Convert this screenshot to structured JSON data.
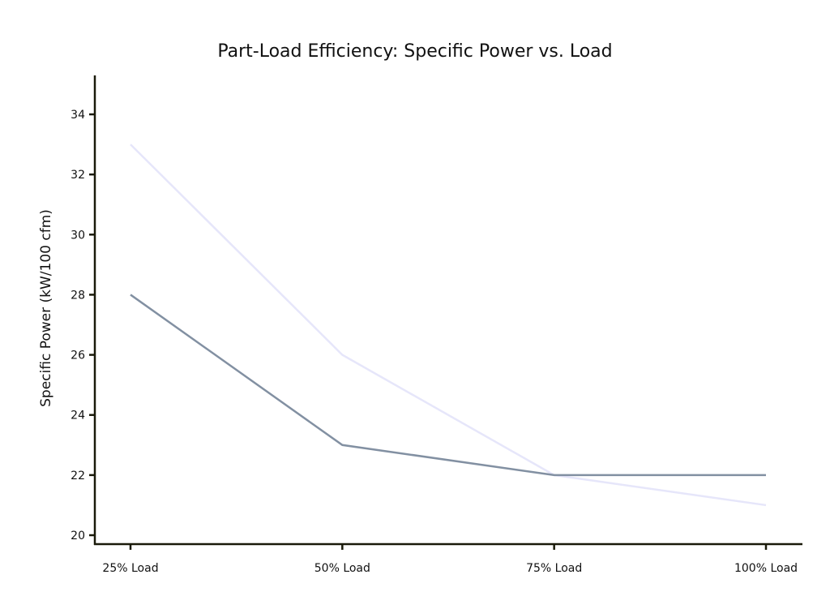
{
  "chart_data": {
    "type": "line",
    "title": "Part-Load Efficiency: Specific Power vs. Load",
    "xlabel": "",
    "ylabel": "Specific Power (kW/100 cfm)",
    "categories": [
      "25% Load",
      "50% Load",
      "75% Load",
      "100% Load"
    ],
    "ylim": [
      19.7,
      35.3
    ],
    "yticks": [
      20,
      22,
      24,
      26,
      28,
      30,
      32,
      34
    ],
    "grid": false,
    "legend": "none",
    "series": [
      {
        "name": "series-1",
        "values": [
          33,
          26,
          22,
          21
        ],
        "color": "#e6e6fa"
      },
      {
        "name": "series-2",
        "values": [
          28,
          23,
          22,
          22
        ],
        "color": "#8290a2"
      }
    ],
    "axis_color": "#1a1a0a"
  }
}
